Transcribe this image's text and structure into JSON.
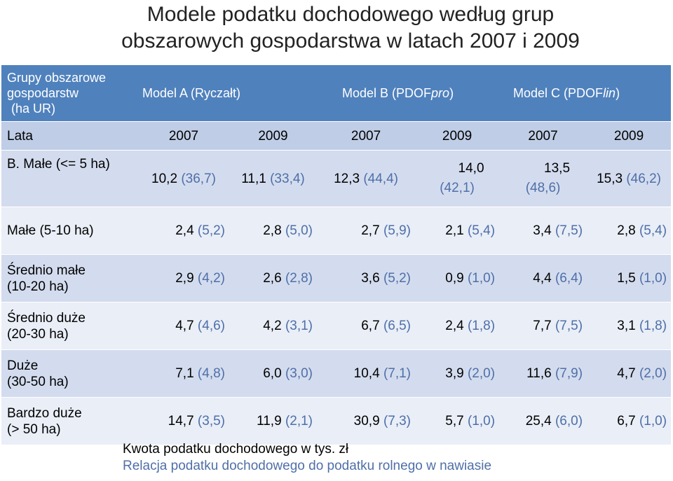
{
  "title": {
    "line1": "Modele podatku dochodowego według grup",
    "line2": "obszarowych gospodarstwa w latach 2007 i 2009"
  },
  "header": {
    "group_label_1": "Grupy obszarowe",
    "group_label_2": "gospodarstw",
    "group_label_3": "(ha UR)",
    "model_a": "Model A (Ryczałt)",
    "model_b_pre": "Model B (PDOF",
    "model_b_em": "pro",
    "model_b_post": ")",
    "model_c_pre": "Model C (PDOF",
    "model_c_em": "lin",
    "model_c_post": ")"
  },
  "years_row": {
    "label": "Lata",
    "years": [
      "2007",
      "2009",
      "2007",
      "2009",
      "2007",
      "2009"
    ]
  },
  "rows": [
    {
      "label": "B. Małe (<= 5 ha)",
      "cells": [
        {
          "v": "10,2",
          "r": "(36,7)"
        },
        {
          "v": "11,1",
          "r": "(33,4)"
        },
        {
          "v": "12,3",
          "r": "(44,4)"
        },
        {
          "v": "14,0",
          "r": "(42,1)"
        },
        {
          "v": "13,5",
          "r": "(48,6)"
        },
        {
          "v": "15,3",
          "r": "(46,2)"
        }
      ]
    },
    {
      "label": "Małe (5-10 ha)",
      "cells": [
        {
          "v": "2,4",
          "r": "(5,2)"
        },
        {
          "v": "2,8",
          "r": "(5,0)"
        },
        {
          "v": "2,7",
          "r": "(5,9)"
        },
        {
          "v": "2,1",
          "r": "(5,4)"
        },
        {
          "v": "3,4",
          "r": "(7,5)"
        },
        {
          "v": "2,8",
          "r": "(5,4)"
        }
      ]
    },
    {
      "label_1": "Średnio małe",
      "label_2": "(10-20 ha)",
      "cells": [
        {
          "v": "2,9",
          "r": "(4,2)"
        },
        {
          "v": "2,6",
          "r": "(2,8)"
        },
        {
          "v": "3,6",
          "r": "(5,2)"
        },
        {
          "v": "0,9",
          "r": "(1,0)"
        },
        {
          "v": "4,4",
          "r": "(6,4)"
        },
        {
          "v": "1,5",
          "r": "(1,0)"
        }
      ]
    },
    {
      "label_1": "Średnio duże",
      "label_2": "(20-30 ha)",
      "cells": [
        {
          "v": "4,7",
          "r": "(4,6)"
        },
        {
          "v": "4,2",
          "r": "(3,1)"
        },
        {
          "v": "6,7",
          "r": "(6,5)"
        },
        {
          "v": "2,4",
          "r": "(1,8)"
        },
        {
          "v": "7,7",
          "r": "(7,5)"
        },
        {
          "v": "3,1",
          "r": "(1,8)"
        }
      ]
    },
    {
      "label_1": "Duże",
      "label_2": "(30-50 ha)",
      "cells": [
        {
          "v": "7,1",
          "r": "(4,8)"
        },
        {
          "v": "6,0",
          "r": "(3,0)"
        },
        {
          "v": "10,4",
          "r": "(7,1)"
        },
        {
          "v": "3,9",
          "r": "(2,0)"
        },
        {
          "v": "11,6",
          "r": "(7,9)"
        },
        {
          "v": "4,7",
          "r": "(2,0)"
        }
      ]
    },
    {
      "label_1": "Bardzo duże",
      "label_2": "(> 50 ha)",
      "cells": [
        {
          "v": "14,7",
          "r": "(3,5)"
        },
        {
          "v": "11,9",
          "r": "(2,1)"
        },
        {
          "v": "30,9",
          "r": "(7,3)"
        },
        {
          "v": "5,7",
          "r": "(1,0)"
        },
        {
          "v": "25,4",
          "r": "(6,0)"
        },
        {
          "v": "6,7",
          "r": "(1,0)"
        }
      ]
    }
  ],
  "legend": {
    "line1": "Kwota podatku dochodowego w tys. zł",
    "line2": "Relacja podatku dochodowego do podatku rolnego w nawiasie"
  },
  "colors": {
    "header_bg": "#4f81bd",
    "years_bg": "#bfcde6",
    "row_dark": "#d3dcee",
    "row_light": "#e9eef7",
    "relation_text": "#4f6fa8"
  }
}
